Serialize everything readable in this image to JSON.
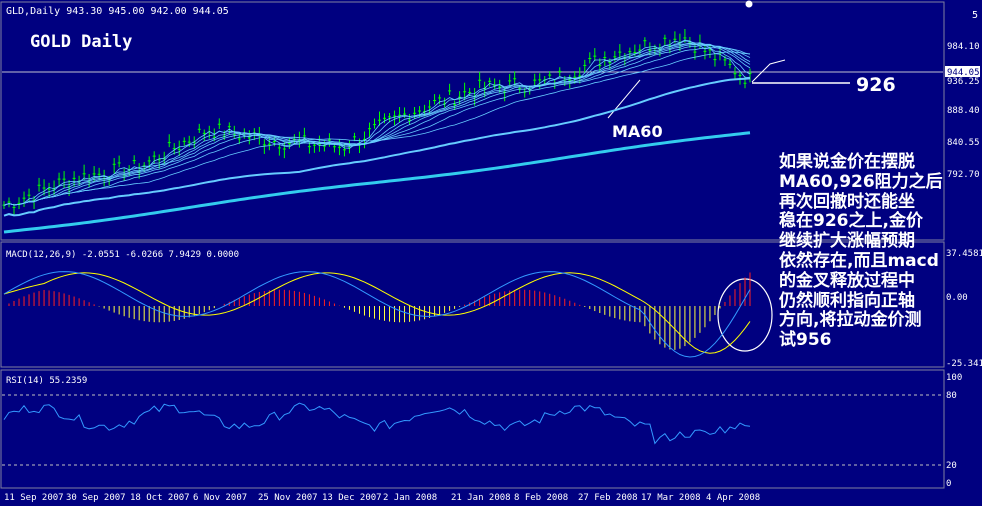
{
  "window": {
    "header": "GLD,Daily  943.30 945.00 942.00 944.05",
    "title": "GOLD Daily",
    "top_right_label": "5"
  },
  "chart_data": [
    {
      "type": "candlestick",
      "title": "GOLD Daily",
      "symbol": "GLD,Daily",
      "ohlc": {
        "open": 943.3,
        "high": 945.0,
        "low": 942.0,
        "close": 944.05
      },
      "y_ticks": [
        "984.10",
        "888.40",
        "840.55",
        "792.70"
      ],
      "current_price_label": "944.05",
      "second_price_label": "936.25",
      "labels": {
        "ma": "MA60",
        "resistance": "926"
      },
      "resistance_level": 926,
      "series_approx": [
        {
          "date": "11 Sep 2007",
          "close": 700
        },
        {
          "date": "30 Sep 2007",
          "close": 745
        },
        {
          "date": "18 Oct 2007",
          "close": 765
        },
        {
          "date": "6 Nov 2007",
          "close": 830
        },
        {
          "date": "25 Nov 2007",
          "close": 810
        },
        {
          "date": "13 Dec 2007",
          "close": 800
        },
        {
          "date": "2 Jan 2008",
          "close": 860
        },
        {
          "date": "21 Jan 2008",
          "close": 900
        },
        {
          "date": "8 Feb 2008",
          "close": 910
        },
        {
          "date": "27 Feb 2008",
          "close": 960
        },
        {
          "date": "17 Mar 2008",
          "close": 990
        },
        {
          "date": "4 Apr 2008",
          "close": 915
        }
      ]
    },
    {
      "type": "histogram",
      "title": "MACD(12,26,9) -2.0551 -6.0266 7.9429 0.0000",
      "y_ticks": [
        "37.4581",
        "0.00",
        "-25.3415"
      ]
    },
    {
      "type": "line",
      "title": "RSI(14) 55.2359",
      "y_ticks": [
        "100",
        "80",
        "20",
        "0"
      ],
      "ylim": [
        0,
        100
      ],
      "levels": [
        80,
        20
      ]
    }
  ],
  "x_labels": [
    "11 Sep 2007",
    "30 Sep 2007",
    "18 Oct 2007",
    "6 Nov 2007",
    "25 Nov 2007",
    "13 Dec 2007",
    "2 Jan 2008",
    "21 Jan 2008",
    "8 Feb 2008",
    "27 Feb 2008",
    "17 Mar 2008",
    "4 Apr 2008"
  ],
  "annotation": {
    "lines": [
      "如果说金价在摆脱",
      "MA60,926阻力之后",
      "再次回撤时还能坐",
      "稳在926之上,金价",
      "继续扩大涨幅预期",
      "依然存在,而且macd",
      "的金叉释放过程中",
      "仍然顺利指向正轴",
      "方向,将拉动金价测",
      "试956"
    ]
  },
  "colors": {
    "background": "#000080",
    "up": "#00ff00",
    "ma": "#66ccff",
    "ma_slow": "#33ccee",
    "macd_pos": "#ff2020",
    "macd_neg": "#ffff40",
    "signal": "#ffff00",
    "rsi": "#3399ff",
    "text": "#ffffff"
  }
}
